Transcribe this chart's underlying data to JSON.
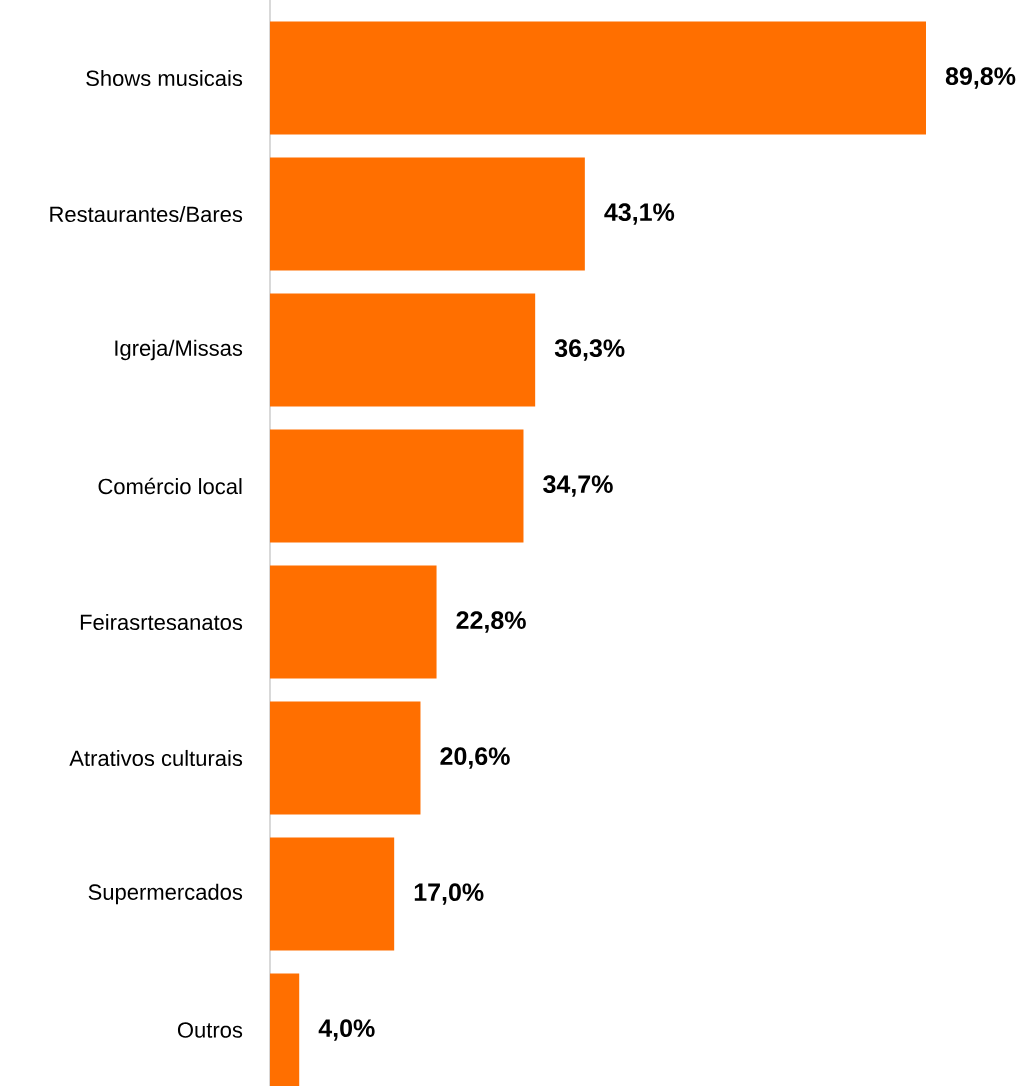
{
  "chart_data": {
    "type": "bar",
    "orientation": "horizontal",
    "categories": [
      "Shows musicais",
      "Restaurantes/Bares",
      "Igreja/Missas",
      "Comércio local",
      "Feirasrtesanatos",
      "Atrativos culturais",
      "Supermercados",
      "Outros"
    ],
    "values": [
      89.8,
      43.1,
      36.3,
      34.7,
      22.8,
      20.6,
      17.0,
      4.0
    ],
    "value_labels": [
      "89,8%",
      "43,1%",
      "36,3%",
      "34,7%",
      "22,8%",
      "20,6%",
      "17,0%",
      "4,0%"
    ],
    "color": "#ff6f00"
  }
}
